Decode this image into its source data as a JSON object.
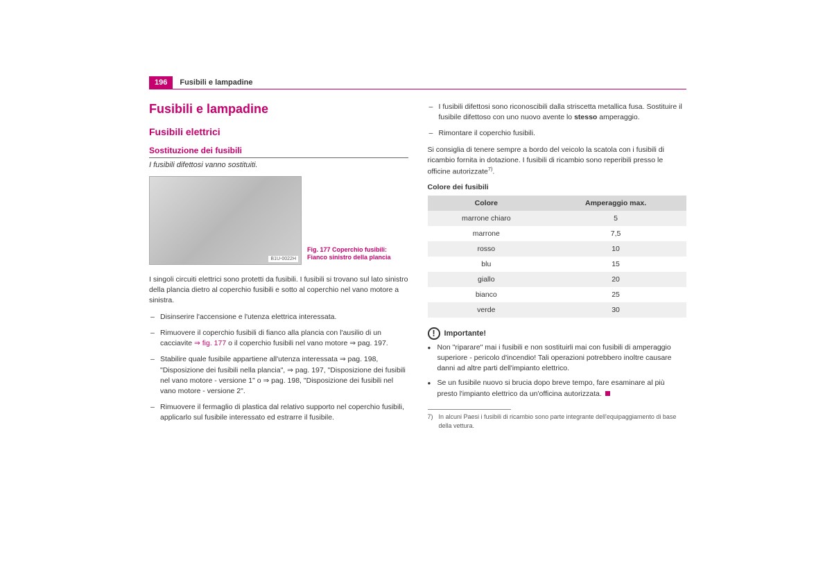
{
  "page": {
    "number": "196",
    "header_title": "Fusibili e lampadine",
    "colors": {
      "accent": "#c5006e",
      "text": "#333333",
      "table_header_bg": "#d9d9d9",
      "table_row_alt_bg": "#efefef",
      "background": "#ffffff"
    }
  },
  "left": {
    "h1": "Fusibili e lampadine",
    "h2": "Fusibili elettrici",
    "h3": "Sostituzione dei fusibili",
    "emph": "I fusibili difettosi vanno sostituiti.",
    "figure": {
      "caption_line1": "Fig. 177  Coperchio fusibili:",
      "caption_line2": "Fianco sinistro della plancia",
      "code": "B1U-0022H"
    },
    "para": "I singoli circuiti elettrici sono protetti da fusibili. I fusibili si trovano sul lato sinistro della plancia dietro al coperchio fusibili e sotto al coperchio nel vano motore a sinistra.",
    "items": [
      "Disinserire l'accensione e l'utenza elettrica interessata.",
      "Rimuovere il coperchio fusibili di fianco alla plancia con l'ausilio di un cacciavite ⇒ fig. 177 o il coperchio fusibili nel vano motore ⇒ pag. 197.",
      "Stabilire quale fusibile appartiene all'utenza interessata ⇒ pag. 198, \"Disposizione dei fusibili nella plancia\", ⇒ pag. 197, \"Disposizione dei fusibili nel vano motore - versione 1\" o ⇒ pag. 198, \"Disposizione dei fusibili nel vano motore - versione 2\".",
      "Rimuovere il fermaglio di plastica dal relativo supporto nel coperchio fusibili, applicarlo sul fusibile interessato ed estrarre il fusibile."
    ]
  },
  "right": {
    "items_top": [
      "I fusibili difettosi sono riconoscibili dalla striscetta metallica fusa. Sostituire il fusibile difettoso con uno nuovo avente lo stesso amperaggio.",
      "Rimontare il coperchio fusibili."
    ],
    "para_top": "Si consiglia di tenere sempre a bordo del veicolo la scatola con i fusibili di ricambio fornita in dotazione. I fusibili di ricambio sono reperibili presso le officine autorizzate",
    "fn_mark_top": "7)",
    "table_heading": "Colore dei fusibili",
    "table": {
      "headers": [
        "Colore",
        "Amperaggio max."
      ],
      "rows": [
        [
          "marrone chiaro",
          "5"
        ],
        [
          "marrone",
          "7,5"
        ],
        [
          "rosso",
          "10"
        ],
        [
          "blu",
          "15"
        ],
        [
          "giallo",
          "20"
        ],
        [
          "bianco",
          "25"
        ],
        [
          "verde",
          "30"
        ]
      ]
    },
    "important_label": "Importante!",
    "important_items": [
      "Non \"riparare\" mai i fusibili e non sostituirli mai con fusibili di amperaggio superiore - pericolo d'incendio! Tali operazioni potrebbero inoltre causare danni ad altre parti dell'impianto elettrico.",
      "Se un fusibile nuovo si brucia dopo breve tempo, fare esaminare al più presto l'impianto elettrico da un'officina autorizzata."
    ],
    "footnote_mark": "7)",
    "footnote_text": "In alcuni Paesi i fusibili di ricambio sono parte integrante dell'equipaggiamento di base della vettura."
  }
}
